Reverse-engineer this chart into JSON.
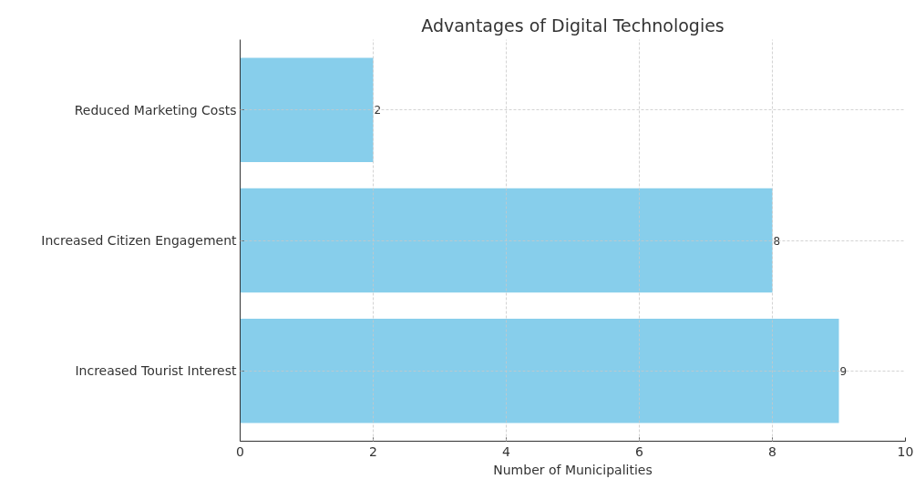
{
  "chart_data": {
    "type": "bar",
    "orientation": "horizontal",
    "title": "Advantages of Digital Technologies",
    "xlabel": "Number of Municipalities",
    "categories": [
      "Reduced Marketing Costs",
      "Increased Citizen Engagement",
      "Increased Tourist Interest"
    ],
    "values": [
      2,
      8,
      9
    ],
    "color": "#87ceeb",
    "xlim": [
      0,
      10
    ],
    "xticks": [
      0,
      2,
      4,
      6,
      8,
      10
    ],
    "grid": true,
    "data_labels": true
  }
}
